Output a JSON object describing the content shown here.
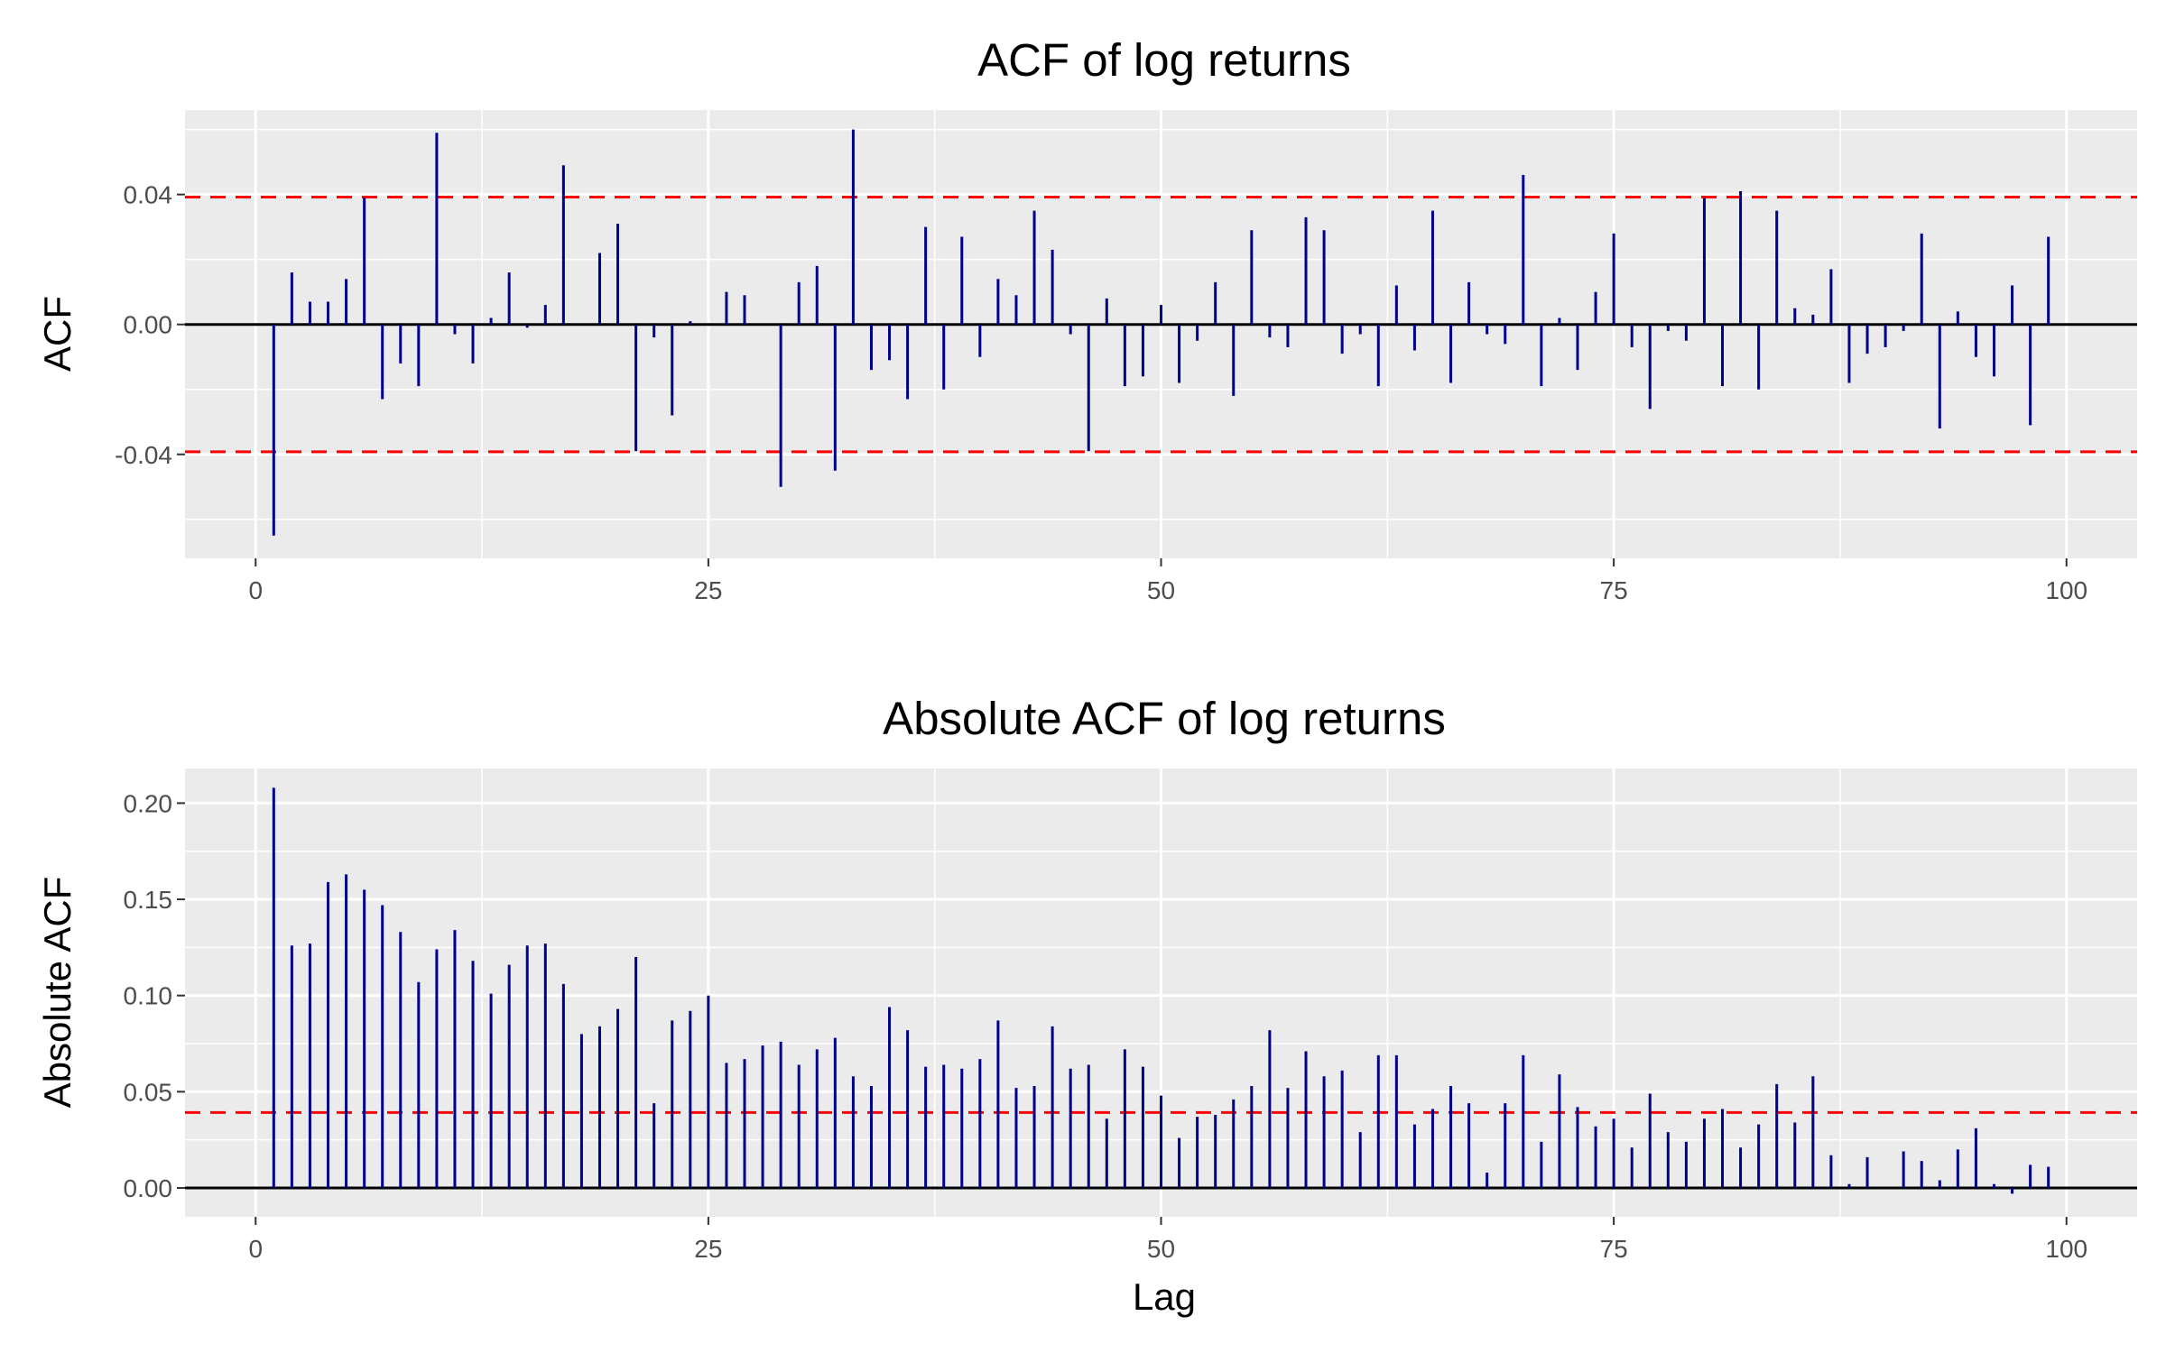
{
  "chart_data": [
    {
      "type": "bar",
      "title": "ACF of log returns",
      "xlabel": "",
      "ylabel": "ACF",
      "xlim": [
        -3.9,
        103.9
      ],
      "ylim": [
        -0.072,
        0.066
      ],
      "x_ticks": [
        0,
        25,
        50,
        75,
        100
      ],
      "y_ticks": [
        -0.04,
        0.0,
        0.04
      ],
      "y_tick_labels": [
        "-0.04",
        "0.00",
        "0.04"
      ],
      "grid": true,
      "bar_color": "#00008b",
      "ci_color": "#ff0000",
      "confidence_bounds": [
        -0.0392,
        0.0392
      ],
      "lags": [
        1,
        2,
        3,
        4,
        5,
        6,
        7,
        8,
        9,
        10,
        11,
        12,
        13,
        14,
        15,
        16,
        17,
        18,
        19,
        20,
        21,
        22,
        23,
        24,
        25,
        26,
        27,
        28,
        29,
        30,
        31,
        32,
        33,
        34,
        35,
        36,
        37,
        38,
        39,
        40,
        41,
        42,
        43,
        44,
        45,
        46,
        47,
        48,
        49,
        50,
        51,
        52,
        53,
        54,
        55,
        56,
        57,
        58,
        59,
        60,
        61,
        62,
        63,
        64,
        65,
        66,
        67,
        68,
        69,
        70,
        71,
        72,
        73,
        74,
        75,
        76,
        77,
        78,
        79,
        80,
        81,
        82,
        83,
        84,
        85,
        86,
        87,
        88,
        89,
        90,
        91,
        92,
        93,
        94,
        95,
        96,
        97,
        98,
        99
      ],
      "values": [
        -0.065,
        0.016,
        0.007,
        0.007,
        0.014,
        0.039,
        -0.023,
        -0.012,
        -0.019,
        0.059,
        -0.003,
        -0.012,
        0.002,
        0.016,
        -0.001,
        0.006,
        0.049,
        0.0,
        0.022,
        0.031,
        -0.039,
        -0.004,
        -0.028,
        0.001,
        0.0,
        0.01,
        0.009,
        0.0,
        -0.05,
        0.013,
        0.018,
        -0.045,
        0.06,
        -0.014,
        -0.011,
        -0.023,
        0.03,
        -0.02,
        0.027,
        -0.01,
        0.014,
        0.009,
        0.035,
        0.023,
        -0.003,
        -0.039,
        0.008,
        -0.019,
        -0.016,
        0.006,
        -0.018,
        -0.005,
        0.013,
        -0.022,
        0.029,
        -0.004,
        -0.007,
        0.033,
        0.029,
        -0.009,
        -0.003,
        -0.019,
        0.012,
        -0.008,
        0.035,
        -0.018,
        0.013,
        -0.003,
        -0.006,
        0.046,
        -0.019,
        0.002,
        -0.014,
        0.01,
        0.028,
        -0.007,
        -0.026,
        -0.002,
        -0.005,
        0.039,
        -0.019,
        0.041,
        -0.02,
        0.035,
        0.005,
        0.003,
        0.017,
        -0.018,
        -0.009,
        -0.007,
        -0.002,
        0.028,
        -0.032,
        0.004,
        -0.01,
        -0.016,
        0.012,
        -0.031,
        0.027
      ]
    },
    {
      "type": "bar",
      "title": "Absolute ACF of log returns",
      "xlabel": "Lag",
      "ylabel": "Absolute ACF",
      "xlim": [
        -3.9,
        103.9
      ],
      "ylim": [
        -0.015,
        0.218
      ],
      "x_ticks": [
        0,
        25,
        50,
        75,
        100
      ],
      "y_ticks": [
        0.0,
        0.05,
        0.1,
        0.15,
        0.2
      ],
      "y_tick_labels": [
        "0.00",
        "0.05",
        "0.10",
        "0.15",
        "0.20"
      ],
      "grid": true,
      "bar_color": "#00008b",
      "ci_color": "#ff0000",
      "confidence_bounds": [
        0.0392
      ],
      "lags": [
        1,
        2,
        3,
        4,
        5,
        6,
        7,
        8,
        9,
        10,
        11,
        12,
        13,
        14,
        15,
        16,
        17,
        18,
        19,
        20,
        21,
        22,
        23,
        24,
        25,
        26,
        27,
        28,
        29,
        30,
        31,
        32,
        33,
        34,
        35,
        36,
        37,
        38,
        39,
        40,
        41,
        42,
        43,
        44,
        45,
        46,
        47,
        48,
        49,
        50,
        51,
        52,
        53,
        54,
        55,
        56,
        57,
        58,
        59,
        60,
        61,
        62,
        63,
        64,
        65,
        66,
        67,
        68,
        69,
        70,
        71,
        72,
        73,
        74,
        75,
        76,
        77,
        78,
        79,
        80,
        81,
        82,
        83,
        84,
        85,
        86,
        87,
        88,
        89,
        90,
        91,
        92,
        93,
        94,
        95,
        96,
        97,
        98,
        99
      ],
      "values": [
        0.208,
        0.126,
        0.127,
        0.159,
        0.163,
        0.155,
        0.147,
        0.133,
        0.107,
        0.124,
        0.134,
        0.118,
        0.101,
        0.116,
        0.126,
        0.127,
        0.106,
        0.08,
        0.084,
        0.093,
        0.12,
        0.044,
        0.087,
        0.092,
        0.1,
        0.065,
        0.067,
        0.074,
        0.076,
        0.064,
        0.072,
        0.078,
        0.058,
        0.053,
        0.094,
        0.082,
        0.063,
        0.064,
        0.062,
        0.067,
        0.087,
        0.052,
        0.053,
        0.084,
        0.062,
        0.064,
        0.036,
        0.072,
        0.063,
        0.048,
        0.026,
        0.037,
        0.038,
        0.046,
        0.053,
        0.082,
        0.052,
        0.071,
        0.058,
        0.061,
        0.029,
        0.069,
        0.069,
        0.033,
        0.041,
        0.053,
        0.044,
        0.008,
        0.044,
        0.069,
        0.024,
        0.059,
        0.042,
        0.032,
        0.036,
        0.021,
        0.049,
        0.029,
        0.024,
        0.036,
        0.041,
        0.021,
        0.033,
        0.054,
        0.034,
        0.058,
        0.017,
        0.002,
        0.016,
        0.0,
        0.019,
        0.014,
        0.004,
        0.02,
        0.031,
        0.002,
        -0.003,
        0.012,
        0.011
      ]
    }
  ]
}
